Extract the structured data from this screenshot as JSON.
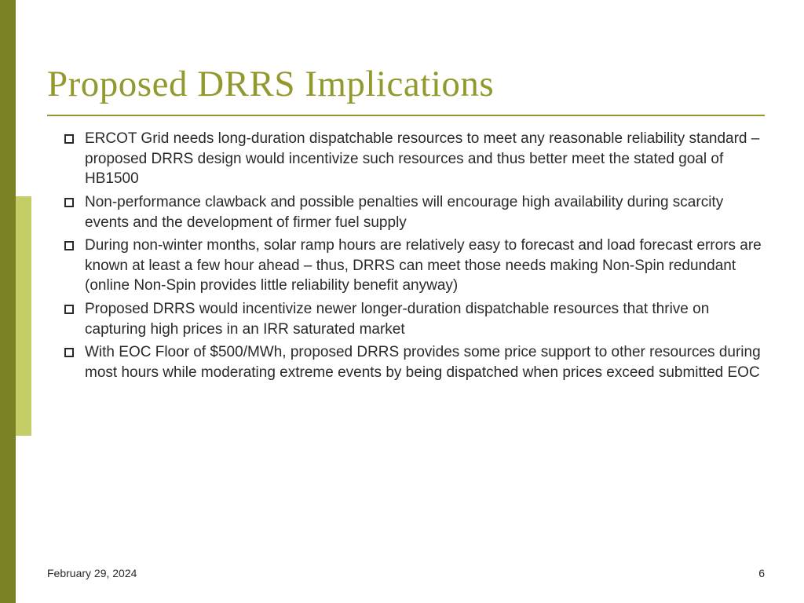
{
  "title": "Proposed DRRS Implications",
  "bullets": [
    "ERCOT Grid needs long-duration dispatchable resources to meet any reasonable reliability standard – proposed DRRS design would incentivize such resources and thus better meet the stated goal of HB1500",
    "Non-performance clawback and possible penalties will encourage high availability during scarcity events and the development of firmer fuel supply",
    "During non-winter months, solar ramp hours are relatively easy to forecast and load forecast errors are known at least a few hour ahead – thus, DRRS can meet those needs making Non-Spin redundant (online Non-Spin provides little reliability benefit anyway)",
    "Proposed DRRS would incentivize newer longer-duration dispatchable resources that thrive on capturing high prices in an IRR saturated market",
    "With EOC Floor of $500/MWh, proposed DRRS provides some price support to other resources during most hours while moderating extreme events by being dispatched when prices exceed submitted EOC"
  ],
  "footer": {
    "date": "February 29, 2024",
    "page": "6"
  },
  "styling": {
    "accent_color": "#94992e",
    "sidebar_dark_color": "#7b8223",
    "sidebar_light_color": "#c5cd66",
    "background_color": "#ffffff",
    "text_color": "#2a2a2a",
    "title_fontsize": 47,
    "body_fontsize": 19,
    "footer_fontsize": 14,
    "title_font": "Garamond",
    "body_font": "Verdana",
    "bullet_marker_style": "hollow-square"
  }
}
